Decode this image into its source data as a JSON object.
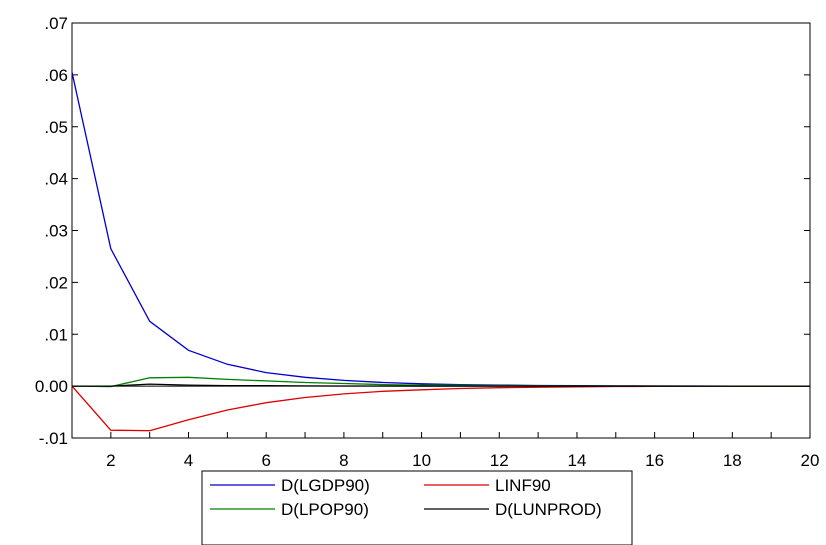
{
  "chart_data": {
    "type": "line",
    "title": "",
    "xlabel": "",
    "ylabel": "",
    "xlim": [
      1,
      20
    ],
    "ylim": [
      -0.01,
      0.07
    ],
    "x_ticks": [
      2,
      4,
      6,
      8,
      10,
      12,
      14,
      16,
      18,
      20
    ],
    "x_tick_labels": [
      "2",
      "4",
      "6",
      "8",
      "10",
      "12",
      "14",
      "16",
      "18",
      "20"
    ],
    "y_ticks": [
      -0.01,
      0.0,
      0.01,
      0.02,
      0.03,
      0.04,
      0.05,
      0.06,
      0.07
    ],
    "y_tick_labels": [
      "-.01",
      "0.00",
      ".01",
      ".02",
      ".03",
      ".04",
      ".05",
      ".06",
      ".07"
    ],
    "zero_line": true,
    "grid": false,
    "legend_position": "bottom-center",
    "x": [
      1,
      2,
      3,
      4,
      5,
      6,
      7,
      8,
      9,
      10,
      11,
      12,
      13,
      14,
      15,
      16,
      17,
      18,
      19,
      20
    ],
    "series": [
      {
        "name": "D(LGDP90)",
        "color": "#0000cc",
        "values": [
          0.0605,
          0.0265,
          0.0125,
          0.0069,
          0.0042,
          0.0026,
          0.0017,
          0.0011,
          0.0007,
          0.00045,
          0.0003,
          0.0002,
          0.00013,
          8e-05,
          5e-05,
          3e-05,
          2e-05,
          1e-05,
          1e-05,
          0.0
        ]
      },
      {
        "name": "LINF90",
        "color": "#dd0000",
        "values": [
          0.0,
          -0.0085,
          -0.0086,
          -0.0065,
          -0.0046,
          -0.0032,
          -0.0022,
          -0.0015,
          -0.001,
          -0.0007,
          -0.00045,
          -0.0003,
          -0.0002,
          -0.00013,
          -8e-05,
          -5e-05,
          -3e-05,
          -2e-05,
          -1e-05,
          0.0
        ]
      },
      {
        "name": "D(LPOP90)",
        "color": "#008000",
        "values": [
          0.0,
          -0.0001,
          0.0016,
          0.0017,
          0.0013,
          0.001,
          0.0007,
          0.0005,
          0.0003,
          0.0002,
          0.00015,
          0.0001,
          7e-05,
          4e-05,
          3e-05,
          2e-05,
          1e-05,
          0.0,
          0.0,
          0.0
        ]
      },
      {
        "name": "D(LUNPROD)",
        "color": "#000000",
        "values": [
          0.0,
          0.0,
          0.0004,
          0.0002,
          0.0001,
          0.0001,
          5e-05,
          3e-05,
          2e-05,
          1e-05,
          0.0,
          0.0,
          0.0,
          0.0,
          0.0,
          0.0,
          0.0,
          0.0,
          0.0,
          0.0
        ]
      }
    ]
  }
}
